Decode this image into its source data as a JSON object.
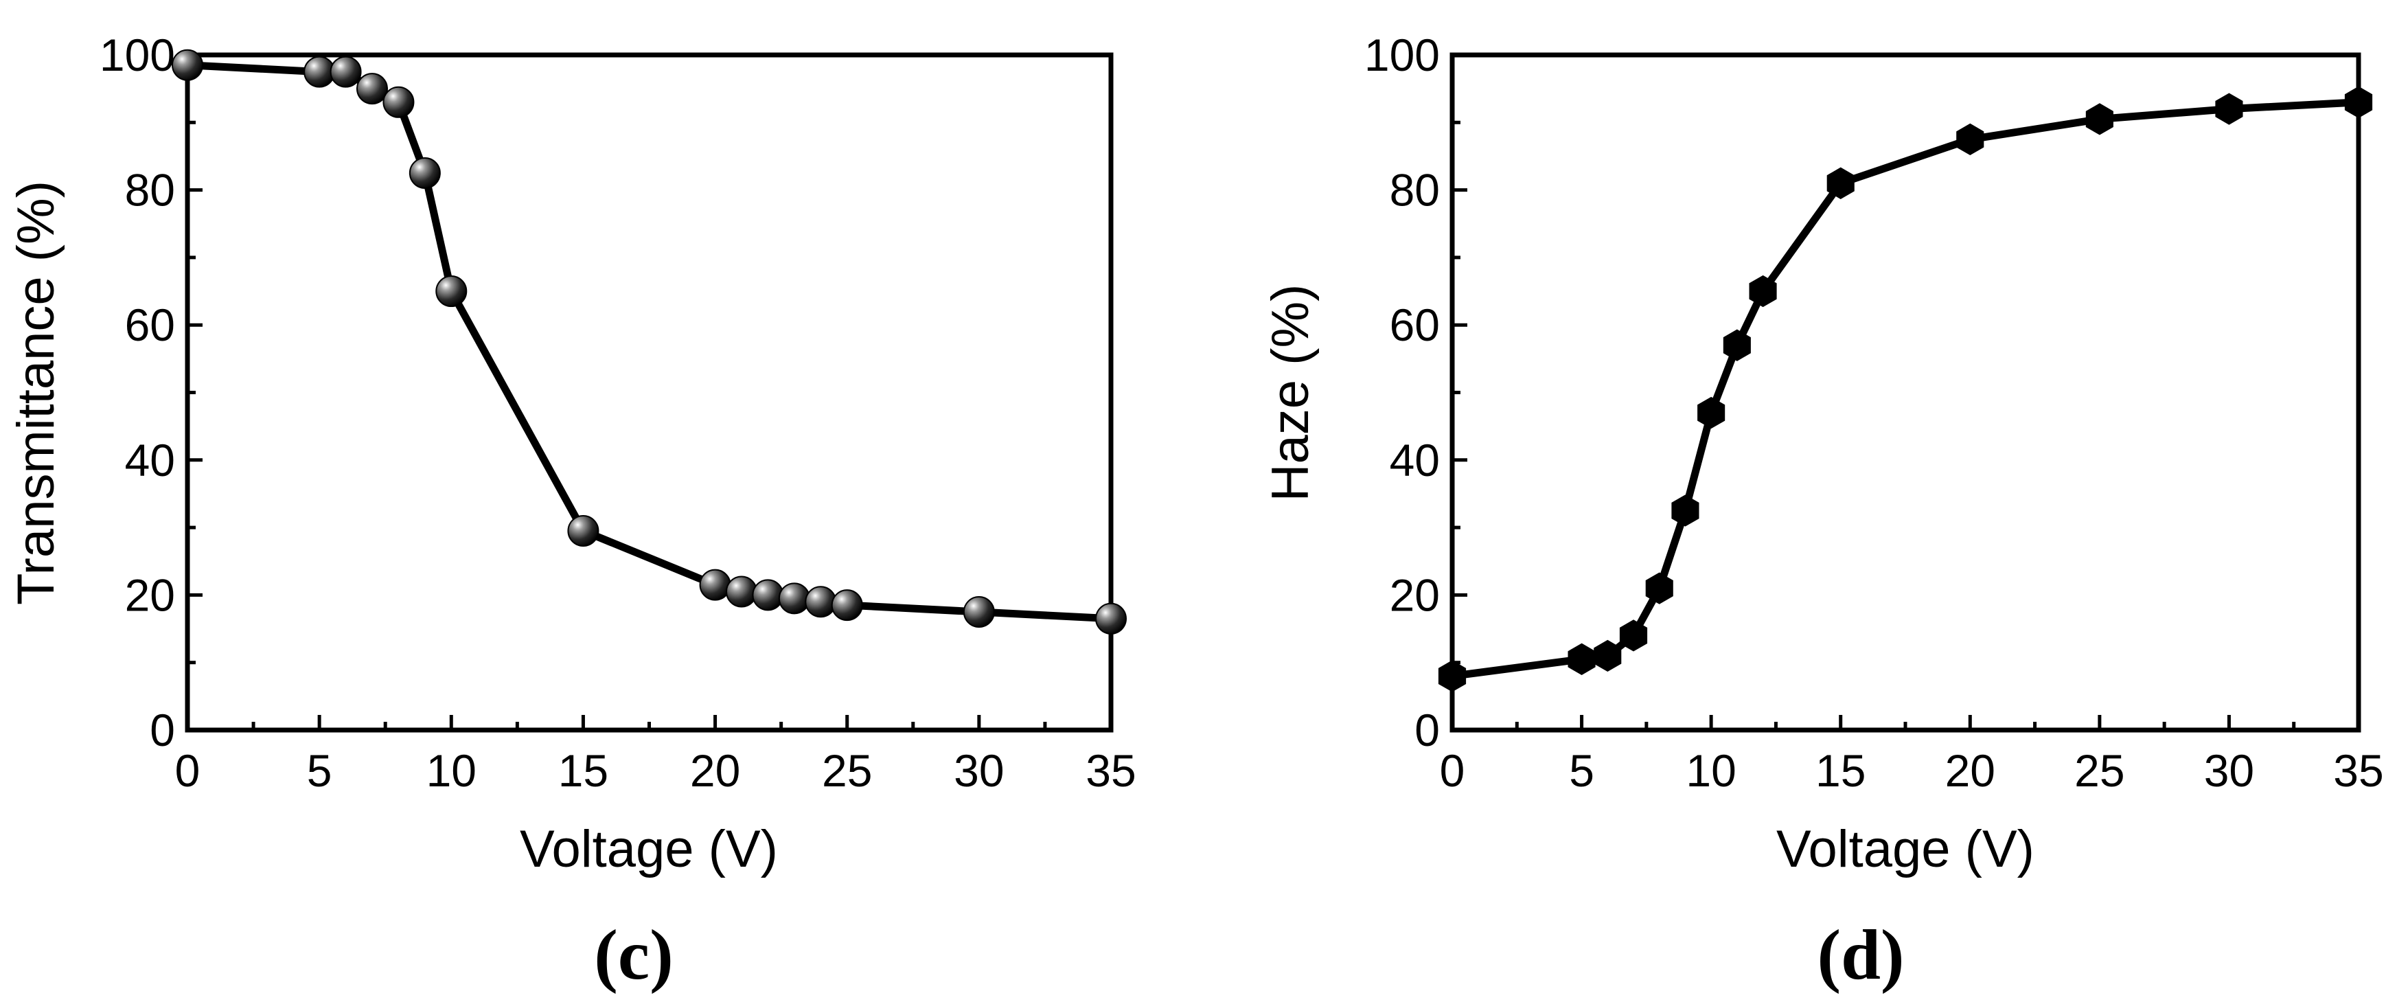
{
  "chart_data": [
    {
      "type": "line",
      "panel_label": "(c)",
      "xlabel": "Voltage (V)",
      "ylabel": "Transmittance (%)",
      "xlim": [
        0,
        35
      ],
      "ylim": [
        0,
        100
      ],
      "xticks": [
        "0",
        "5",
        "10",
        "15",
        "20",
        "25",
        "30",
        "35"
      ],
      "yticks": [
        "0",
        "20",
        "40",
        "60",
        "80",
        "100"
      ],
      "marker": "sphere",
      "series": [
        {
          "name": "Transmittance",
          "x": [
            0,
            5,
            6,
            7,
            8,
            9,
            10,
            15,
            20,
            21,
            22,
            23,
            24,
            25,
            30,
            35
          ],
          "y": [
            98.5,
            97.5,
            97.5,
            95,
            93,
            82.5,
            65,
            29.5,
            21.5,
            20.5,
            20,
            19.5,
            19,
            18.5,
            17.5,
            16.5
          ]
        }
      ]
    },
    {
      "type": "line",
      "panel_label": "(d)",
      "xlabel": "Voltage (V)",
      "ylabel": "Haze (%)",
      "xlim": [
        0,
        35
      ],
      "ylim": [
        0,
        100
      ],
      "xticks": [
        "0",
        "5",
        "10",
        "15",
        "20",
        "25",
        "30",
        "35"
      ],
      "yticks": [
        "0",
        "20",
        "40",
        "60",
        "80",
        "100"
      ],
      "marker": "hexagon",
      "series": [
        {
          "name": "Haze",
          "x": [
            0,
            5,
            6,
            7,
            8,
            9,
            10,
            11,
            12,
            15,
            20,
            25,
            30,
            35
          ],
          "y": [
            8,
            10.5,
            11,
            14,
            21,
            32.5,
            47,
            57,
            65,
            81,
            87.5,
            90.5,
            92,
            93
          ]
        }
      ]
    }
  ]
}
